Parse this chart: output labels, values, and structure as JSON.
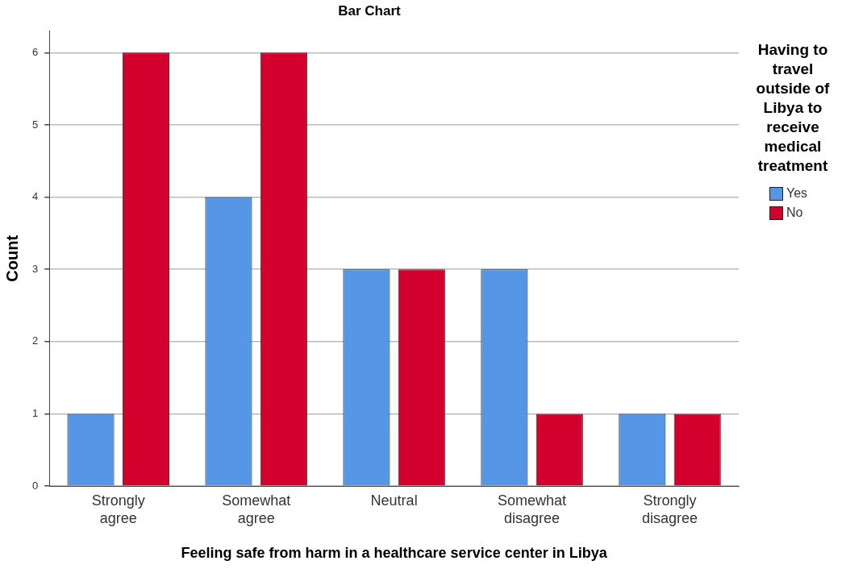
{
  "chart_data": {
    "type": "bar",
    "title": "Bar Chart",
    "xlabel": "Feeling safe from harm in a healthcare service center in Libya",
    "ylabel": "Count",
    "legend_title": "Having to travel outside of Libya to receive medical treatment",
    "categories": [
      "Strongly agree",
      "Somewhat agree",
      "Neutral",
      "Somewhat disagree",
      "Strongly disagree"
    ],
    "series": [
      {
        "name": "Yes",
        "color": "#5596e6",
        "values": [
          1,
          4,
          3,
          3,
          1
        ]
      },
      {
        "name": "No",
        "color": "#d3002d",
        "values": [
          6,
          6,
          3,
          1,
          1
        ]
      }
    ],
    "ylim": [
      0,
      6.3
    ],
    "yticks": [
      0,
      1,
      2,
      3,
      4,
      5,
      6
    ],
    "grid": "y",
    "legend": "top right"
  }
}
